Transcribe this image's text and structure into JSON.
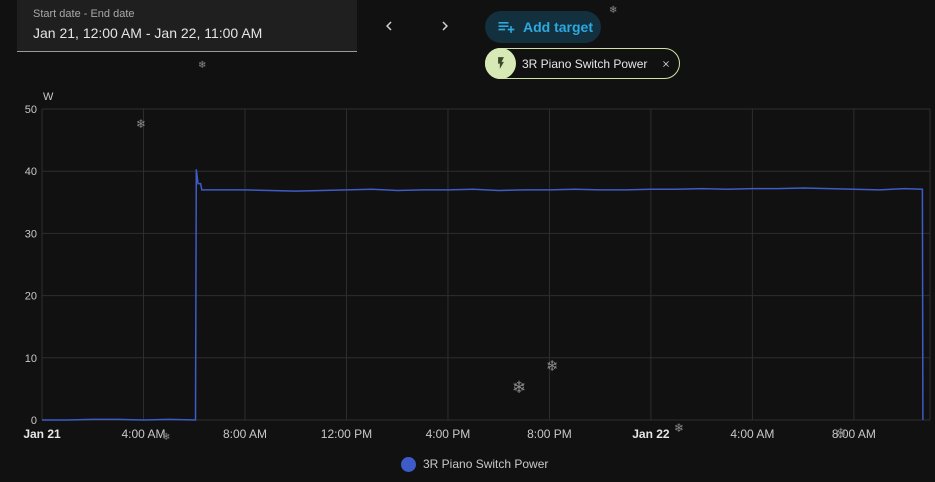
{
  "date_range": {
    "label": "Start date - End date",
    "value": "Jan 21, 12:00 AM - Jan 22, 11:00 AM"
  },
  "nav": {
    "prev_icon": "chevron-left-icon",
    "next_icon": "chevron-right-icon"
  },
  "add_target": {
    "label": "Add target",
    "icon": "playlist-plus-icon",
    "color": "#2ea8e0"
  },
  "target_chip": {
    "label": "3R Piano Switch Power",
    "icon": "flash-icon",
    "close_icon": "close-icon"
  },
  "chart_data": {
    "type": "line",
    "title": "",
    "ylabel": "W",
    "xlabel": "",
    "ylim": [
      0,
      50
    ],
    "yticks": [
      0,
      10,
      20,
      30,
      40,
      50
    ],
    "xlim_hours": [
      0,
      35
    ],
    "xticks": [
      {
        "label": "Jan 21",
        "hour": 0,
        "bold": true
      },
      {
        "label": "4:00 AM",
        "hour": 4
      },
      {
        "label": "8:00 AM",
        "hour": 8
      },
      {
        "label": "12:00 PM",
        "hour": 12
      },
      {
        "label": "4:00 PM",
        "hour": 16
      },
      {
        "label": "8:00 PM",
        "hour": 20
      },
      {
        "label": "Jan 22",
        "hour": 24,
        "bold": true
      },
      {
        "label": "4:00 AM",
        "hour": 28
      },
      {
        "label": "8:00 AM",
        "hour": 32
      }
    ],
    "grid": true,
    "legend_position": "bottom",
    "series": [
      {
        "name": "3R Piano Switch Power",
        "color": "#3e5bc7",
        "points": [
          [
            0,
            0
          ],
          [
            1,
            0
          ],
          [
            2,
            0.1
          ],
          [
            3,
            0.1
          ],
          [
            4,
            0
          ],
          [
            5,
            0.1
          ],
          [
            6.05,
            0
          ],
          [
            6.08,
            40.3
          ],
          [
            6.15,
            38
          ],
          [
            6.25,
            38
          ],
          [
            6.3,
            37
          ],
          [
            7,
            37
          ],
          [
            8,
            37
          ],
          [
            9,
            36.9
          ],
          [
            10,
            36.8
          ],
          [
            11,
            36.9
          ],
          [
            12,
            37
          ],
          [
            13,
            37.1
          ],
          [
            14,
            36.9
          ],
          [
            15,
            37
          ],
          [
            16,
            37
          ],
          [
            17,
            37.1
          ],
          [
            18,
            36.9
          ],
          [
            19,
            37
          ],
          [
            20,
            37
          ],
          [
            21,
            37.1
          ],
          [
            22,
            37
          ],
          [
            23,
            37
          ],
          [
            24,
            37.1
          ],
          [
            25,
            37.1
          ],
          [
            26,
            37.2
          ],
          [
            27,
            37.1
          ],
          [
            28,
            37.2
          ],
          [
            29,
            37.2
          ],
          [
            30,
            37.3
          ],
          [
            31,
            37.2
          ],
          [
            32,
            37.1
          ],
          [
            33,
            37
          ],
          [
            34,
            37.2
          ],
          [
            34.7,
            37.1
          ],
          [
            34.72,
            0
          ]
        ]
      }
    ]
  }
}
